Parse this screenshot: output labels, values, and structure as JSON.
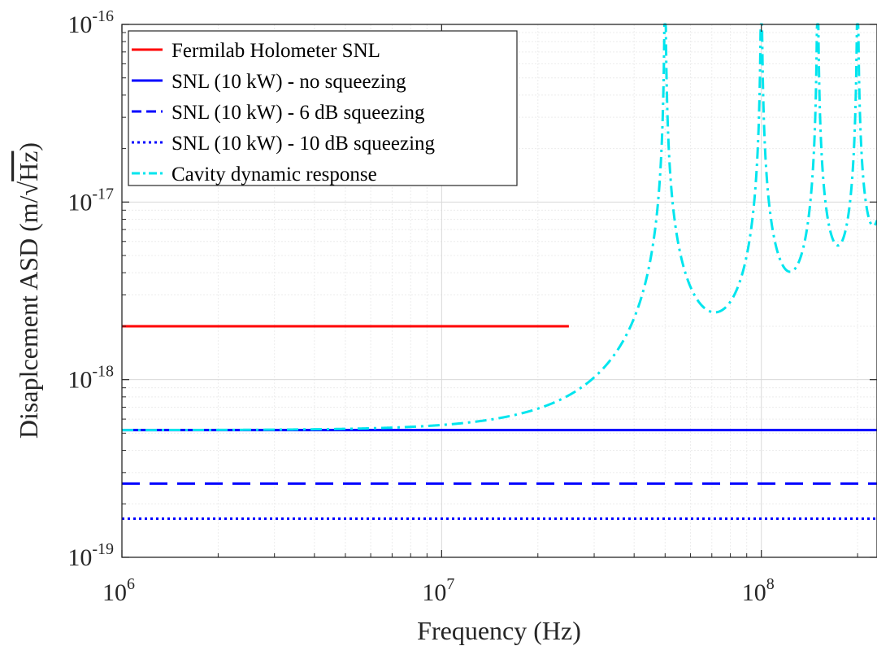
{
  "chart_data": {
    "type": "line",
    "x_scale": "log",
    "y_scale": "log",
    "xlabel": "Frequency (Hz)",
    "ylabel_text": "Disaplcement ASD (m/",
    "ylabel_radicand": "Hz",
    "ylabel_close": ")",
    "xlim": [
      1000000,
      230000000
    ],
    "ylim": [
      1e-19,
      1e-16
    ],
    "grid": true,
    "minor_grid": true,
    "legend_position": "top-left",
    "x_ticks": [
      {
        "value": 1000000,
        "base": "10",
        "exp": "6"
      },
      {
        "value": 10000000,
        "base": "10",
        "exp": "7"
      },
      {
        "value": 100000000,
        "base": "10",
        "exp": "8"
      }
    ],
    "y_ticks": [
      {
        "value": 1e-19,
        "base": "10",
        "exp": "-19"
      },
      {
        "value": 1e-18,
        "base": "10",
        "exp": "-18"
      },
      {
        "value": 1e-17,
        "base": "10",
        "exp": "-17"
      },
      {
        "value": 1e-16,
        "base": "10",
        "exp": "-16"
      }
    ],
    "series": [
      {
        "name": "Fermilab Holometer SNL",
        "color": "#ff0000",
        "style": "solid",
        "x": [
          1000000,
          25000000
        ],
        "y": [
          2e-18,
          2e-18
        ]
      },
      {
        "name": "SNL (10 kW) - no squeezing",
        "color": "#0000ff",
        "style": "solid",
        "x": [
          1000000,
          230000000
        ],
        "y": [
          5.2e-19,
          5.2e-19
        ]
      },
      {
        "name": "SNL (10 kW) - 6 dB squeezing",
        "color": "#0000ff",
        "style": "dashed",
        "x": [
          1000000,
          230000000
        ],
        "y": [
          2.6e-19,
          2.6e-19
        ]
      },
      {
        "name": "SNL (10 kW) - 10 dB squeezing",
        "color": "#0000ff",
        "style": "dotted",
        "x": [
          1000000,
          230000000
        ],
        "y": [
          1.65e-19,
          1.65e-19
        ]
      },
      {
        "name": "Cavity dynamic response",
        "color": "#00e5ee",
        "style": "dashdot",
        "model": {
          "base_value": 5.2e-19,
          "fsr": 50000000,
          "x_start": 1000000,
          "x_end": 230000000,
          "ymax_clip": 1e-16
        }
      }
    ]
  }
}
